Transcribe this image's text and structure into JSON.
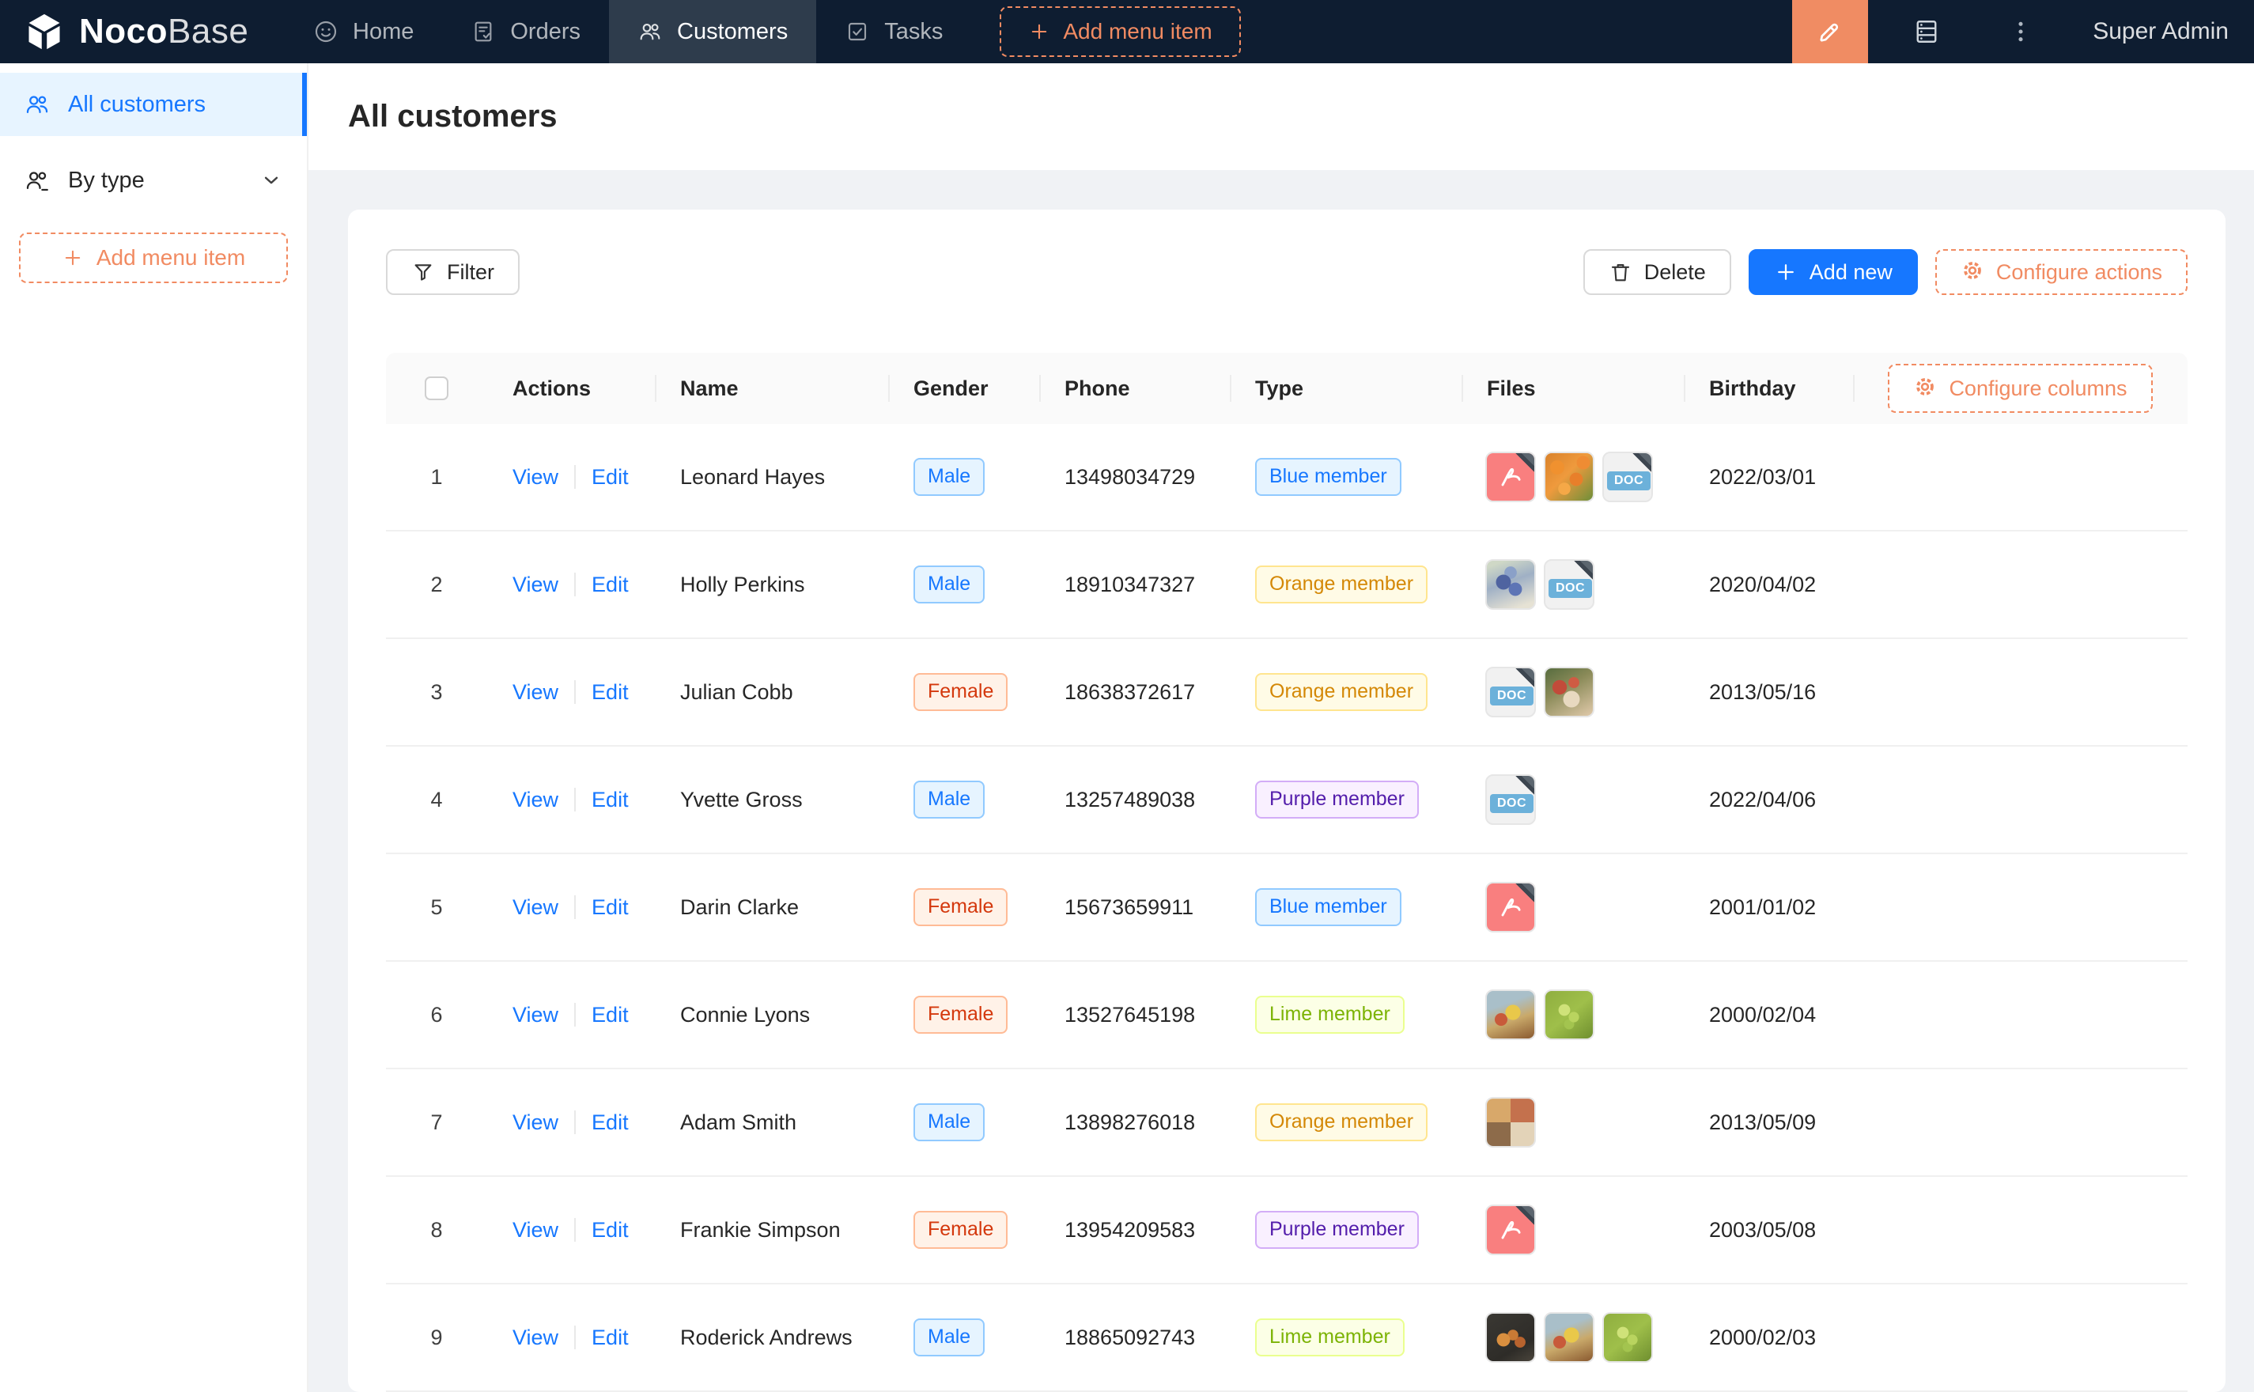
{
  "brand": {
    "bold": "Noco",
    "light": "Base"
  },
  "nav": {
    "items": [
      {
        "label": "Home",
        "icon": "smiley-icon",
        "active": false
      },
      {
        "label": "Orders",
        "icon": "orders-icon",
        "active": false
      },
      {
        "label": "Customers",
        "icon": "customers-icon",
        "active": true
      },
      {
        "label": "Tasks",
        "icon": "tasks-icon",
        "active": false
      }
    ],
    "add_menu_item": "Add menu item",
    "user": "Super Admin"
  },
  "sidebar": {
    "items": [
      {
        "label": "All customers",
        "icon": "customers-icon",
        "active": true
      },
      {
        "label": "By type",
        "icon": "customers-group-icon",
        "active": false,
        "has_chevron": true
      }
    ],
    "add_menu_item": "Add menu item"
  },
  "page": {
    "title": "All customers"
  },
  "toolbar": {
    "filter": "Filter",
    "delete": "Delete",
    "add_new": "Add new",
    "configure_actions": "Configure actions"
  },
  "table": {
    "columns": [
      "Actions",
      "Name",
      "Gender",
      "Phone",
      "Type",
      "Files",
      "Birthday"
    ],
    "configure_columns": "Configure columns",
    "action_links": [
      "View",
      "Edit"
    ],
    "rows": [
      {
        "index": 1,
        "name": "Leonard Hayes",
        "gender": {
          "label": "Male",
          "color": "blue"
        },
        "phone": "13498034729",
        "type": {
          "label": "Blue member",
          "color": "blue"
        },
        "files": [
          {
            "kind": "pdf"
          },
          {
            "kind": "image",
            "variant": "orange-flowers"
          },
          {
            "kind": "doc"
          }
        ],
        "birthday": "2022/03/01"
      },
      {
        "index": 2,
        "name": "Holly Perkins",
        "gender": {
          "label": "Male",
          "color": "blue"
        },
        "phone": "18910347327",
        "type": {
          "label": "Orange member",
          "color": "gold"
        },
        "files": [
          {
            "kind": "image",
            "variant": "blue-grapes"
          },
          {
            "kind": "doc"
          }
        ],
        "birthday": "2020/04/02"
      },
      {
        "index": 3,
        "name": "Julian Cobb",
        "gender": {
          "label": "Female",
          "color": "volcano"
        },
        "phone": "18638372617",
        "type": {
          "label": "Orange member",
          "color": "gold"
        },
        "files": [
          {
            "kind": "doc"
          },
          {
            "kind": "image",
            "variant": "food-plate"
          }
        ],
        "birthday": "2013/05/16"
      },
      {
        "index": 4,
        "name": "Yvette Gross",
        "gender": {
          "label": "Male",
          "color": "blue"
        },
        "phone": "13257489038",
        "type": {
          "label": "Purple member",
          "color": "purple"
        },
        "files": [
          {
            "kind": "doc"
          }
        ],
        "birthday": "2022/04/06"
      },
      {
        "index": 5,
        "name": "Darin Clarke",
        "gender": {
          "label": "Female",
          "color": "volcano"
        },
        "phone": "15673659911",
        "type": {
          "label": "Blue member",
          "color": "blue"
        },
        "files": [
          {
            "kind": "pdf"
          }
        ],
        "birthday": "2001/01/02"
      },
      {
        "index": 6,
        "name": "Connie Lyons",
        "gender": {
          "label": "Female",
          "color": "volcano"
        },
        "phone": "13527645198",
        "type": {
          "label": "Lime member",
          "color": "lime"
        },
        "files": [
          {
            "kind": "image",
            "variant": "fruit-table"
          },
          {
            "kind": "image",
            "variant": "green-grapes"
          }
        ],
        "birthday": "2000/02/04"
      },
      {
        "index": 7,
        "name": "Adam Smith",
        "gender": {
          "label": "Male",
          "color": "blue"
        },
        "phone": "13898276018",
        "type": {
          "label": "Orange member",
          "color": "gold"
        },
        "files": [
          {
            "kind": "image",
            "variant": "food-collage"
          }
        ],
        "birthday": "2013/05/09"
      },
      {
        "index": 8,
        "name": "Frankie Simpson",
        "gender": {
          "label": "Female",
          "color": "volcano"
        },
        "phone": "13954209583",
        "type": {
          "label": "Purple member",
          "color": "purple"
        },
        "files": [
          {
            "kind": "pdf"
          }
        ],
        "birthday": "2003/05/08"
      },
      {
        "index": 9,
        "name": "Roderick Andrews",
        "gender": {
          "label": "Male",
          "color": "blue"
        },
        "phone": "18865092743",
        "type": {
          "label": "Lime member",
          "color": "lime"
        },
        "files": [
          {
            "kind": "image",
            "variant": "dark-fruit"
          },
          {
            "kind": "image",
            "variant": "fruit-table"
          },
          {
            "kind": "image",
            "variant": "green-grapes"
          }
        ],
        "birthday": "2000/02/03"
      }
    ]
  },
  "files": {
    "doc_label": "DOC"
  },
  "colors": {
    "nav_bg": "#0e1d31",
    "nav_active_bg": "#2e3c4c",
    "accent_orange": "#f18b62",
    "editor_button_bg": "#f08c63",
    "primary_blue": "#1677ff",
    "sidebar_active_bg": "#e7f4ff",
    "page_bg": "#f0f2f5",
    "table_header_bg": "#fafafa",
    "tags": {
      "blue": {
        "bg": "#e6f4ff",
        "border": "#91caff",
        "text": "#1677ff"
      },
      "volcano": {
        "bg": "#fff2e8",
        "border": "#ffbb96",
        "text": "#d4380d"
      },
      "gold": {
        "bg": "#fffbe6",
        "border": "#ffe58f",
        "text": "#d48806"
      },
      "purple": {
        "bg": "#f9f0ff",
        "border": "#d3adf7",
        "text": "#531dab"
      },
      "lime": {
        "bg": "#fcffe6",
        "border": "#eaff8f",
        "text": "#7cb305"
      }
    },
    "pdf_icon_bg": "#f97f7f",
    "doc_chip_bg": "#6cb1da"
  }
}
